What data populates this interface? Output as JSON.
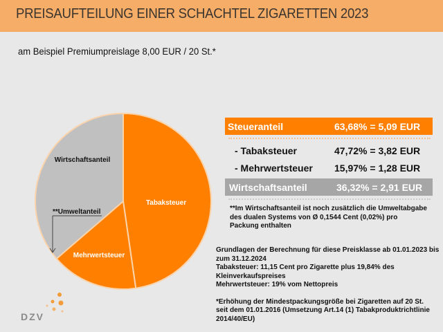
{
  "header": {
    "title": "PREISAUFTEILUNG EINER SCHACHTEL ZIGARETTEN 2023",
    "subtitle": "am Beispiel Premiumpreislage 8,00 EUR / 20 St.*"
  },
  "chart_data": {
    "type": "pie",
    "start": "12 o'clock",
    "direction": "clockwise",
    "slices": [
      {
        "label": "Tabaksteuer",
        "value": 47.72,
        "color": "#ff8000"
      },
      {
        "label": "Mehrwertsteuer",
        "value": 15.97,
        "color": "#ff8000"
      },
      {
        "label": "Wirtschaftsanteil",
        "value": 36.32,
        "color": "#c0c0c0"
      }
    ],
    "annotation": "**Umweltanteil"
  },
  "table": {
    "steuer": {
      "label": "Steueranteil",
      "value": "63,68% = 5,09 EUR",
      "color": "#ff8000"
    },
    "rows": [
      {
        "label": "- Tabaksteuer",
        "value": "47,72% = 3,82 EUR"
      },
      {
        "label": "- Mehrwertsteuer",
        "value": "15,97% = 1,28 EUR"
      }
    ],
    "wirtschaft": {
      "label": "Wirtschaftsanteil",
      "value": "36,32% = 2,91 EUR",
      "color": "#a6a6a6"
    },
    "footnote": [
      "**Im Wirtschaftsanteil ist noch zusätzlich die Umweltabgabe",
      "des dualen Systems von Ø 0,1544 Cent  (0,02%) pro",
      "Packung enthalten"
    ]
  },
  "notes": {
    "lines": [
      "Grundlagen der Berechnung  für diese Preisklasse ab 01.01.2023 bis",
      "zum 31.12.2024",
      "Tabaksteuer: 11,15 Cent pro Zigarette plus 19,84% des",
      "Kleinverkaufspreises",
      "Mehrwertsteuer: 19% vom Nettopreis"
    ],
    "lines2": [
      "*Erhöhung der Mindestpackungsgröße bei Zigaretten auf 20 St.",
      "seit dem 01.01.2016 (Umsetzung Art.14 (1) Tabakproduktrichtlinie",
      "2014/40/EU)"
    ]
  },
  "logo": "DZV"
}
